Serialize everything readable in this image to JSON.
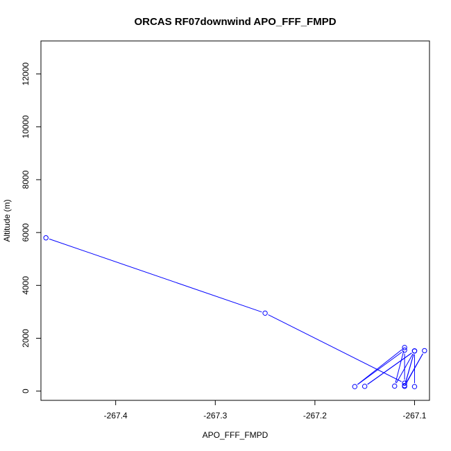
{
  "chart_data": {
    "type": "line",
    "title": "ORCAS RF07downwind APO_FFF_FMPD",
    "xlabel": "APO_FFF_FMPD",
    "ylabel": "Altitude (m)",
    "xlim": [
      -267.475,
      -267.085
    ],
    "ylim": [
      -350,
      13250
    ],
    "xticks": [
      -267.4,
      -267.3,
      -267.2,
      -267.1
    ],
    "xtick_labels": [
      "-267.4",
      "-267.3",
      "-267.2",
      "-267.1"
    ],
    "yticks": [
      0,
      2000,
      4000,
      6000,
      8000,
      10000,
      12000
    ],
    "ytick_labels": [
      "0",
      "2000",
      "4000",
      "6000",
      "8000",
      "10000",
      "12000"
    ],
    "grid": false,
    "series": [
      {
        "color": "#0000ff",
        "marker": "open-circle",
        "points": [
          {
            "x": -267.47,
            "y": 5800
          },
          {
            "x": -267.25,
            "y": 2950
          },
          {
            "x": -267.11,
            "y": 300
          },
          {
            "x": -267.11,
            "y": 1550
          },
          {
            "x": -267.16,
            "y": 170
          },
          {
            "x": -267.11,
            "y": 1650
          },
          {
            "x": -267.12,
            "y": 190
          },
          {
            "x": -267.1,
            "y": 1520
          },
          {
            "x": -267.15,
            "y": 180
          },
          {
            "x": -267.1,
            "y": 1520
          },
          {
            "x": -267.11,
            "y": 210
          },
          {
            "x": -267.09,
            "y": 1530
          },
          {
            "x": -267.11,
            "y": 180
          },
          {
            "x": -267.1,
            "y": 1520
          },
          {
            "x": -267.1,
            "y": 170
          }
        ]
      }
    ]
  }
}
